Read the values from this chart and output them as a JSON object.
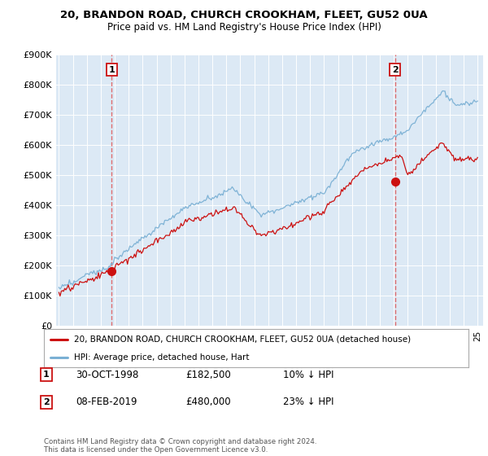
{
  "title": "20, BRANDON ROAD, CHURCH CROOKHAM, FLEET, GU52 0UA",
  "subtitle": "Price paid vs. HM Land Registry's House Price Index (HPI)",
  "ylim": [
    0,
    900000
  ],
  "yticks": [
    0,
    100000,
    200000,
    300000,
    400000,
    500000,
    600000,
    700000,
    800000,
    900000
  ],
  "ytick_labels": [
    "£0",
    "£100K",
    "£200K",
    "£300K",
    "£400K",
    "£500K",
    "£600K",
    "£700K",
    "£800K",
    "£900K"
  ],
  "background_color": "#ffffff",
  "plot_bg_color": "#dce9f5",
  "grid_color": "#ffffff",
  "hpi_color": "#7ab0d4",
  "price_color": "#cc1111",
  "vline_color": "#e06060",
  "legend_label_price": "20, BRANDON ROAD, CHURCH CROOKHAM, FLEET, GU52 0UA (detached house)",
  "legend_label_hpi": "HPI: Average price, detached house, Hart",
  "sale1_year": 1998.79,
  "sale1_price": 182500,
  "sale2_year": 2019.09,
  "sale2_price": 480000,
  "table_data": [
    [
      "1",
      "30-OCT-1998",
      "£182,500",
      "10% ↓ HPI"
    ],
    [
      "2",
      "08-FEB-2019",
      "£480,000",
      "23% ↓ HPI"
    ]
  ],
  "footer": "Contains HM Land Registry data © Crown copyright and database right 2024.\nThis data is licensed under the Open Government Licence v3.0.",
  "start_year": 1995,
  "end_year": 2025
}
